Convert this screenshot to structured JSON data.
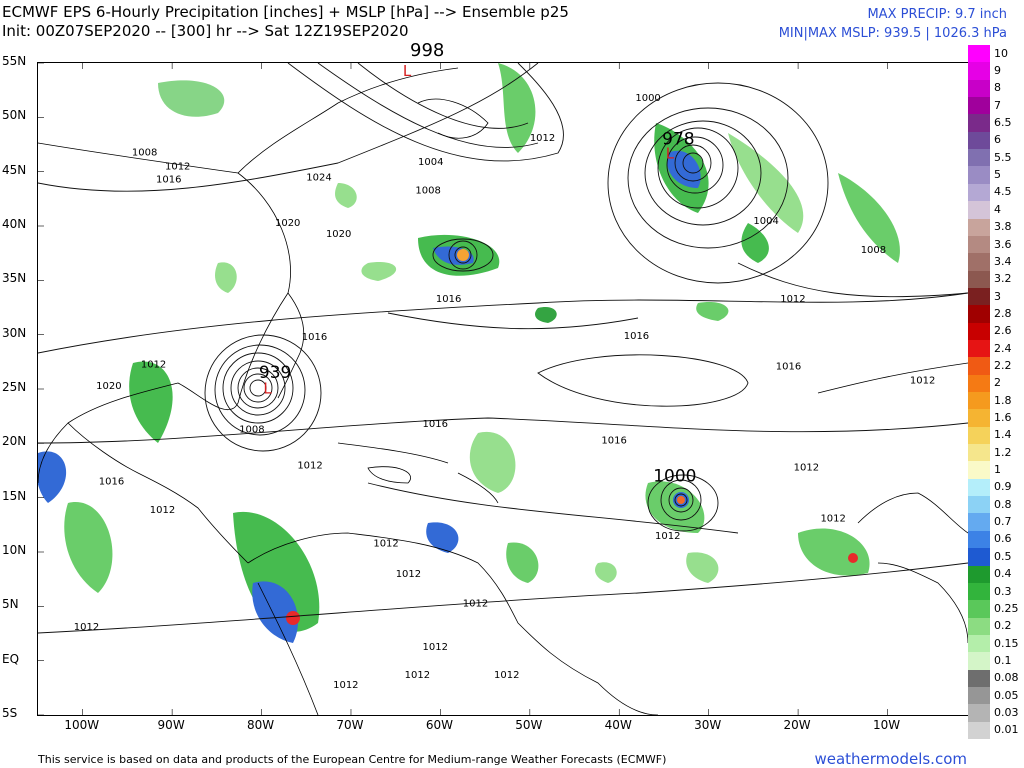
{
  "header": {
    "title_line1": "ECMWF EPS 6-Hourly Precipitation [inches] + MSLP [hPa] --> Ensemble p25",
    "title_line2": "Init: 00Z07SEP2020 -- [300] hr --> Sat 12Z19SEP2020",
    "max_precip": "MAX PRECIP: 9.7 inch",
    "min_max_mslp": "MIN|MAX MSLP: 939.5 | 1026.3 hPa",
    "top_pressure": "998"
  },
  "map": {
    "lat_labels": [
      "55N",
      "50N",
      "45N",
      "40N",
      "35N",
      "30N",
      "25N",
      "20N",
      "15N",
      "10N",
      "5N",
      "EQ",
      "5S"
    ],
    "lon_labels": [
      "100W",
      "90W",
      "80W",
      "70W",
      "60W",
      "50W",
      "40W",
      "30W",
      "20W",
      "10W"
    ],
    "pressure_labels": [
      {
        "text": "1008",
        "lon": -94.5,
        "lat": 46.5
      },
      {
        "text": "1012",
        "lon": -90.8,
        "lat": 45.2
      },
      {
        "text": "1016",
        "lon": -91.8,
        "lat": 44.0
      },
      {
        "text": "1024",
        "lon": -75.0,
        "lat": 44.2
      },
      {
        "text": "1020",
        "lon": -78.5,
        "lat": 40.0
      },
      {
        "text": "1020",
        "lon": -72.8,
        "lat": 39.0
      },
      {
        "text": "1004",
        "lon": -62.5,
        "lat": 45.6
      },
      {
        "text": "1008",
        "lon": -62.8,
        "lat": 43.0
      },
      {
        "text": "1012",
        "lon": -50.0,
        "lat": 47.8
      },
      {
        "text": "1000",
        "lon": -38.2,
        "lat": 51.5
      },
      {
        "text": "1004",
        "lon": -25.0,
        "lat": 40.2
      },
      {
        "text": "1008",
        "lon": -13.0,
        "lat": 37.5
      },
      {
        "text": "1012",
        "lon": -22.0,
        "lat": 33.0
      },
      {
        "text": "1016",
        "lon": -60.5,
        "lat": 33.0
      },
      {
        "text": "1016",
        "lon": -39.5,
        "lat": 29.6
      },
      {
        "text": "1016",
        "lon": -75.5,
        "lat": 29.5
      },
      {
        "text": "1016",
        "lon": -22.5,
        "lat": 26.8
      },
      {
        "text": "1012",
        "lon": -7.5,
        "lat": 25.5
      },
      {
        "text": "1012",
        "lon": -93.5,
        "lat": 27.0
      },
      {
        "text": "1020",
        "lon": -98.5,
        "lat": 25.0
      },
      {
        "text": "1016",
        "lon": -62.0,
        "lat": 21.5
      },
      {
        "text": "1016",
        "lon": -42.0,
        "lat": 20.0
      },
      {
        "text": "1008",
        "lon": -82.5,
        "lat": 21.0
      },
      {
        "text": "1012",
        "lon": -76.0,
        "lat": 17.7
      },
      {
        "text": "1012",
        "lon": -20.5,
        "lat": 17.5
      },
      {
        "text": "1016",
        "lon": -98.2,
        "lat": 16.2
      },
      {
        "text": "1012",
        "lon": -92.5,
        "lat": 13.6
      },
      {
        "text": "1012",
        "lon": -17.5,
        "lat": 12.8
      },
      {
        "text": "1012",
        "lon": -67.5,
        "lat": 10.5
      },
      {
        "text": "1012",
        "lon": -36.0,
        "lat": 11.2
      },
      {
        "text": "1012",
        "lon": -65.0,
        "lat": 7.7
      },
      {
        "text": "1012",
        "lon": -57.5,
        "lat": 5.0
      },
      {
        "text": "1012",
        "lon": -101.0,
        "lat": 2.8
      },
      {
        "text": "1012",
        "lon": -62.0,
        "lat": 1.0
      },
      {
        "text": "1012",
        "lon": -64.0,
        "lat": -1.6
      },
      {
        "text": "1012",
        "lon": -54.0,
        "lat": -1.6
      },
      {
        "text": "1012",
        "lon": -72.0,
        "lat": -2.5
      }
    ],
    "storm_labels": [
      {
        "text": "939",
        "lon": -80.3,
        "lat": 26.0
      },
      {
        "text": "978",
        "lon": -35.2,
        "lat": 47.5
      },
      {
        "text": "1000",
        "lon": -36.2,
        "lat": 16.5
      }
    ],
    "low_markers": [
      {
        "text": "L",
        "lon": -79.8,
        "lat": 24.6,
        "color": "#d62020"
      },
      {
        "text": "L",
        "lon": -34.8,
        "lat": 46.2,
        "color": "#d62020"
      },
      {
        "text": "L",
        "lon": -64.2,
        "lat": 53.8,
        "color": "#d62020"
      }
    ]
  },
  "colorbar": {
    "labels": [
      "10",
      "9",
      "8",
      "7",
      "6.5",
      "6",
      "5.5",
      "5",
      "4.5",
      "4",
      "3.8",
      "3.6",
      "3.4",
      "3.2",
      "3",
      "2.8",
      "2.6",
      "2.4",
      "2.2",
      "2",
      "1.8",
      "1.6",
      "1.4",
      "1.2",
      "1",
      "0.9",
      "0.8",
      "0.7",
      "0.6",
      "0.5",
      "0.4",
      "0.3",
      "0.25",
      "0.2",
      "0.15",
      "0.1",
      "0.08",
      "0.05",
      "0.03",
      "0.01"
    ],
    "colors": [
      "#ff00ff",
      "#e600e6",
      "#c800c8",
      "#a0009c",
      "#7a2a8a",
      "#6e4a9a",
      "#8070b0",
      "#9a8cc4",
      "#b4a8d4",
      "#d4c4d8",
      "#c8a49c",
      "#b48a82",
      "#a07068",
      "#8c5850",
      "#7a2020",
      "#a00000",
      "#c80000",
      "#e61414",
      "#f05a14",
      "#f57a14",
      "#f59a1e",
      "#f5b432",
      "#f5d25a",
      "#f5e68c",
      "#fafac8",
      "#b4eefa",
      "#8cd2f5",
      "#64aaf0",
      "#3c82e6",
      "#1e5ad2",
      "#1e9a2e",
      "#32b43c",
      "#5ac85a",
      "#8cdc82",
      "#b4eeaa",
      "#d4f5c8",
      "#6e6e6e",
      "#969696",
      "#b4b4b4",
      "#d2d2d2"
    ]
  },
  "footer": {
    "credit": "This service is based on data and products of the European Centre for Medium-range Weather Forecasts (ECMWF)",
    "site": "weathermodels.com"
  }
}
